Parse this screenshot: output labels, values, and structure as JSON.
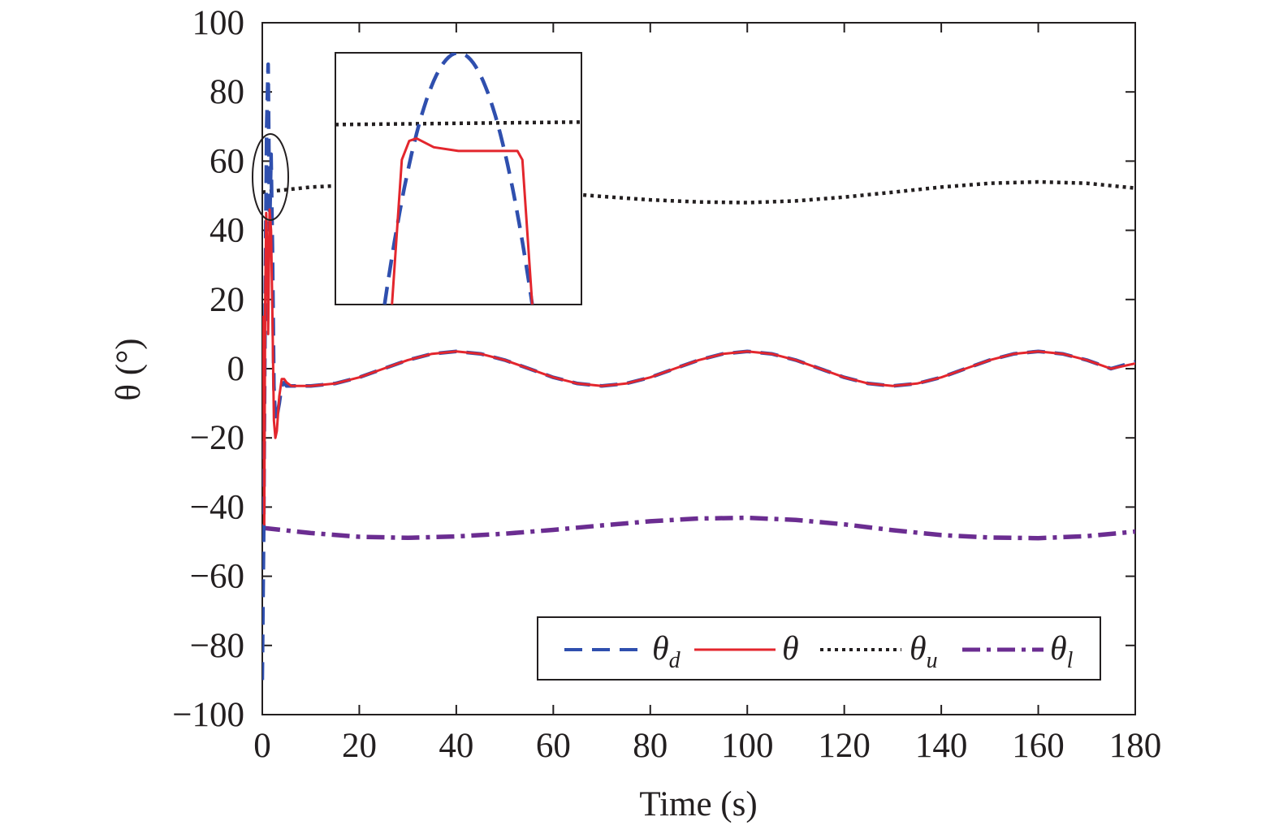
{
  "chart_data": {
    "type": "line",
    "xlabel": "Time (s)",
    "ylabel": "θ (°)",
    "xlim": [
      0,
      180
    ],
    "ylim": [
      -100,
      100
    ],
    "xticks": [
      0,
      20,
      40,
      60,
      80,
      100,
      120,
      140,
      160,
      180
    ],
    "yticks": [
      100,
      80,
      60,
      40,
      20,
      0,
      -20,
      -40,
      -60,
      -80,
      -100
    ],
    "ytick_labels": [
      "100",
      "80",
      "60",
      "40",
      "20",
      "0",
      "−20",
      "−40",
      "−60",
      "−80",
      "−100"
    ],
    "grid": false,
    "legend": {
      "placement": "bottom-right",
      "entries": [
        {
          "symbol": "θ",
          "sub": "d"
        },
        {
          "symbol": "θ",
          "sub": ""
        },
        {
          "symbol": "θ",
          "sub": "u"
        },
        {
          "symbol": "θ",
          "sub": "l"
        }
      ]
    },
    "series": [
      {
        "key": "theta_d",
        "style": "dashed",
        "color": "#2f4fae",
        "x": [
          0,
          0.3,
          0.6,
          0.9,
          1.2,
          1.5,
          1.8,
          2.1,
          2.4,
          2.7,
          3.0,
          3.5,
          4.0,
          4.5,
          5,
          6,
          8,
          10,
          15,
          20,
          25,
          30,
          35,
          40,
          45,
          50,
          55,
          60,
          65,
          70,
          75,
          80,
          85,
          90,
          95,
          100,
          105,
          110,
          115,
          120,
          125,
          130,
          135,
          140,
          145,
          150,
          155,
          160,
          165,
          170,
          175,
          180
        ],
        "y": [
          -90,
          -45,
          20,
          70,
          88,
          40,
          62,
          35,
          -5,
          -15,
          -14,
          -10,
          -5,
          -4,
          -5,
          -5,
          -5,
          -5,
          -4.3,
          -2.5,
          0,
          2.5,
          4.3,
          5,
          4.3,
          2.5,
          0,
          -2.5,
          -4.3,
          -5,
          -4.3,
          -2.5,
          0,
          2.5,
          4.3,
          5,
          4.3,
          2.5,
          0,
          -2.5,
          -4.3,
          -5,
          -4.3,
          -2.5,
          0,
          2.5,
          4.3,
          5,
          4.3,
          2.5,
          0,
          2
        ]
      },
      {
        "key": "theta",
        "style": "solid",
        "color": "#e3262d",
        "x": [
          0,
          0.2,
          0.4,
          0.6,
          0.8,
          1.0,
          1.2,
          1.5,
          1.8,
          2.1,
          2.4,
          2.7,
          3.0,
          3.5,
          4.0,
          4.5,
          5,
          6,
          8,
          10,
          15,
          20,
          25,
          30,
          35,
          40,
          45,
          50,
          55,
          60,
          65,
          70,
          75,
          80,
          85,
          90,
          95,
          100,
          105,
          110,
          115,
          120,
          125,
          130,
          135,
          140,
          145,
          150,
          155,
          160,
          165,
          170,
          175,
          180
        ],
        "y": [
          -2,
          15,
          -45,
          20,
          45,
          35,
          10,
          46,
          40,
          15,
          -15,
          -20,
          -18,
          -8,
          -3,
          -3,
          -4,
          -5,
          -5,
          -5,
          -4.3,
          -2.5,
          0,
          2.5,
          4.3,
          5,
          4.3,
          2.5,
          0,
          -2.5,
          -4.3,
          -5,
          -4.3,
          -2.5,
          0,
          2.5,
          4.3,
          5,
          4.3,
          2.5,
          0,
          -2.5,
          -4.3,
          -5,
          -4.3,
          -2.5,
          0,
          2.5,
          4.3,
          5,
          4.3,
          2.5,
          0,
          1.5
        ]
      },
      {
        "key": "theta_u",
        "style": "dotted",
        "color": "#231f20",
        "x": [
          0,
          10,
          20,
          30,
          40,
          50,
          60,
          70,
          80,
          90,
          100,
          110,
          120,
          130,
          140,
          150,
          160,
          170,
          180
        ],
        "y": [
          51,
          52.5,
          53.2,
          53.3,
          52.9,
          52,
          50.9,
          49.8,
          48.8,
          48.2,
          48,
          48.5,
          49.6,
          51,
          52.5,
          53.6,
          54,
          53.6,
          52.2
        ]
      },
      {
        "key": "theta_l",
        "style": "dashdot",
        "color": "#6b2d91",
        "x": [
          0,
          10,
          20,
          30,
          40,
          50,
          60,
          70,
          80,
          90,
          100,
          110,
          120,
          130,
          140,
          150,
          160,
          170,
          180
        ],
        "y": [
          -46,
          -47.5,
          -48.6,
          -48.9,
          -48.5,
          -47.7,
          -46.6,
          -45.3,
          -44.1,
          -43.3,
          -43.1,
          -43.7,
          -45,
          -46.7,
          -48.1,
          -48.8,
          -49,
          -48.4,
          -47.1
        ]
      }
    ],
    "inset": {
      "description_note": "",
      "series": [
        {
          "key": "theta_d",
          "style": "dashed",
          "color": "#2f4fae",
          "x": [
            0.2,
            0.3,
            0.4,
            0.5,
            0.6,
            0.7,
            0.8
          ],
          "y": [
            -1,
            0.5,
            0.93,
            1.0,
            0.9,
            0.45,
            -1
          ]
        },
        {
          "key": "theta",
          "style": "solid",
          "color": "#e3262d",
          "x": [
            0.23,
            0.27,
            0.3,
            0.33,
            0.4,
            0.5,
            0.6,
            0.74,
            0.76,
            0.8
          ],
          "y": [
            -1,
            0.15,
            0.3,
            0.32,
            0.25,
            0.22,
            0.22,
            0.22,
            0.15,
            -1
          ]
        },
        {
          "key": "theta_u",
          "style": "dotted",
          "color": "#231f20",
          "x": [
            0,
            1
          ],
          "y": [
            0.43,
            0.45
          ]
        }
      ]
    }
  }
}
